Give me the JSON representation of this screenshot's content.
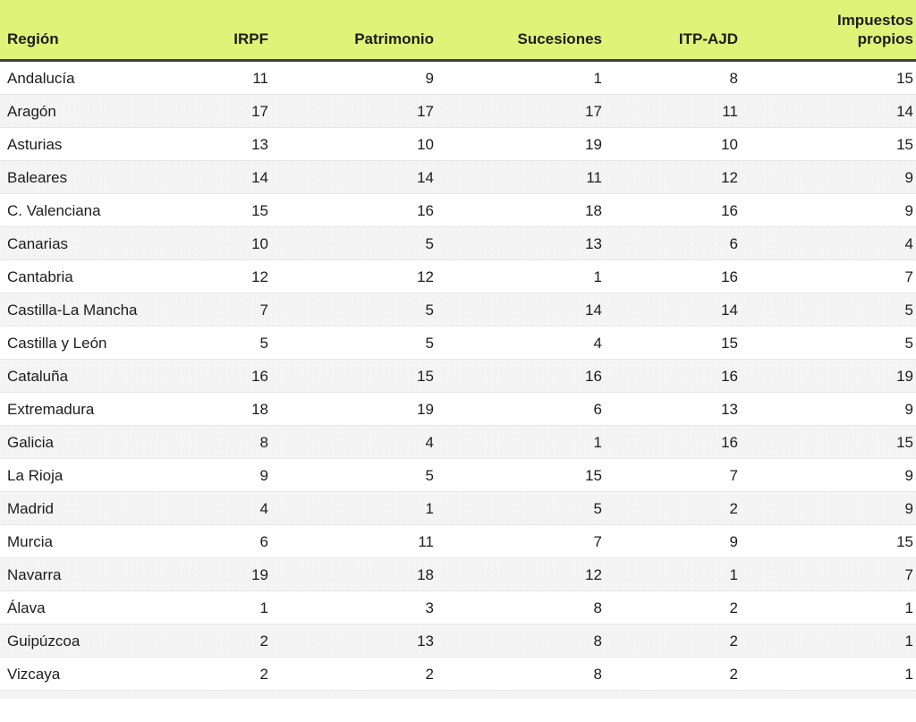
{
  "chart_data": {
    "type": "table",
    "columns": [
      {
        "key": "region",
        "label": "Región",
        "align": "left"
      },
      {
        "key": "irpf",
        "label": "IRPF",
        "align": "right"
      },
      {
        "key": "patrimonio",
        "label": "Patrimonio",
        "align": "right"
      },
      {
        "key": "sucesiones",
        "label": "Sucesiones",
        "align": "right"
      },
      {
        "key": "itp_ajd",
        "label": "ITP-AJD",
        "align": "right"
      },
      {
        "key": "impuestos_propios",
        "label": "Impuestos propios",
        "align": "right"
      }
    ],
    "rows": [
      [
        "Andalucía",
        11,
        9,
        1,
        8,
        15
      ],
      [
        "Aragón",
        17,
        17,
        17,
        11,
        14
      ],
      [
        "Asturias",
        13,
        10,
        19,
        10,
        15
      ],
      [
        "Baleares",
        14,
        14,
        11,
        12,
        9
      ],
      [
        "C. Valenciana",
        15,
        16,
        18,
        16,
        9
      ],
      [
        "Canarias",
        10,
        5,
        13,
        6,
        4
      ],
      [
        "Cantabria",
        12,
        12,
        1,
        16,
        7
      ],
      [
        "Castilla-La Mancha",
        7,
        5,
        14,
        14,
        5
      ],
      [
        "Castilla y León",
        5,
        5,
        4,
        15,
        5
      ],
      [
        "Cataluña",
        16,
        15,
        16,
        16,
        19
      ],
      [
        "Extremadura",
        18,
        19,
        6,
        13,
        9
      ],
      [
        "Galicia",
        8,
        4,
        1,
        16,
        15
      ],
      [
        "La Rioja",
        9,
        5,
        15,
        7,
        9
      ],
      [
        "Madrid",
        4,
        1,
        5,
        2,
        9
      ],
      [
        "Murcia",
        6,
        11,
        7,
        9,
        15
      ],
      [
        "Navarra",
        19,
        18,
        12,
        1,
        7
      ],
      [
        "Álava",
        1,
        3,
        8,
        2,
        1
      ],
      [
        "Guipúzcoa",
        2,
        13,
        8,
        2,
        1
      ],
      [
        "Vizcaya",
        2,
        2,
        8,
        2,
        1
      ]
    ]
  },
  "colors": {
    "header_bg": "#def378",
    "header_text": "#1d1d1d",
    "header_border": "#3d3d3d",
    "body_text": "#1d1d1d",
    "row_alt_bg": "#f4f4f4",
    "row_divider": "#e6e6e6"
  }
}
